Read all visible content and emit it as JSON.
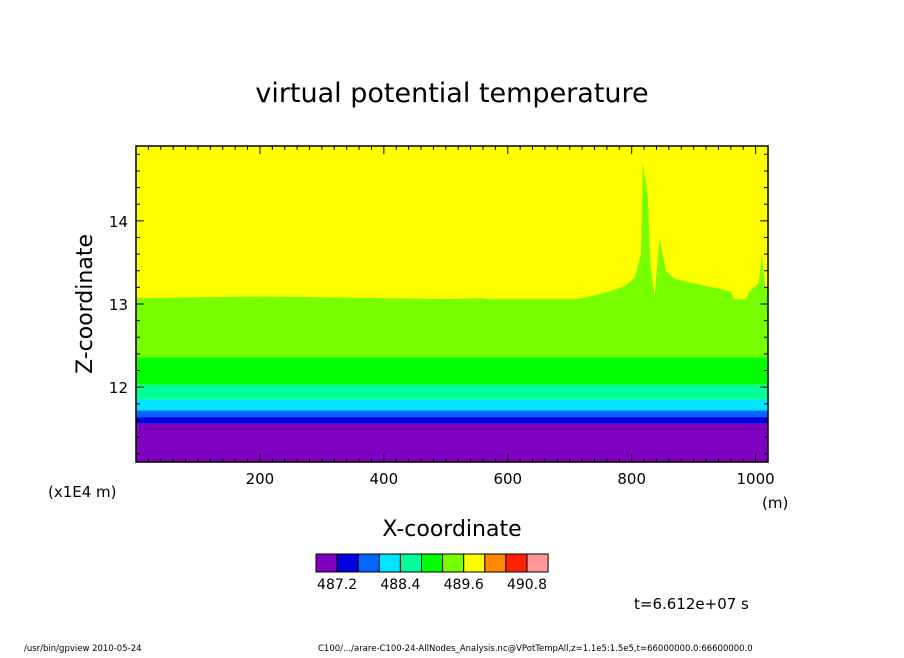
{
  "chart_data": {
    "type": "heatmap",
    "title": "virtual potential temperature",
    "xlabel": "X-coordinate",
    "ylabel": "Z-coordinate",
    "x_unit": "(m)",
    "y_unit": "(x1E4 m)",
    "xlim": [
      0,
      1020
    ],
    "ylim": [
      11.1,
      14.9
    ],
    "x_ticks": [
      "200",
      "400",
      "600",
      "800",
      "1000"
    ],
    "x_tick_values": [
      200,
      400,
      600,
      800,
      1000
    ],
    "y_ticks": [
      "12",
      "13",
      "14"
    ],
    "y_tick_values": [
      12,
      13,
      14
    ],
    "levels": [
      487.2,
      487.6,
      488.0,
      488.4,
      488.8,
      489.2,
      489.6,
      490.0,
      490.4,
      490.8
    ],
    "colorbar_labels": [
      "487.2",
      "488.4",
      "489.6",
      "490.8"
    ],
    "colorbar_colors": [
      "#7f00bf",
      "#0000e0",
      "#0066ff",
      "#00e5ff",
      "#00ff99",
      "#00ff00",
      "#77ff00",
      "#ffff00",
      "#ff8800",
      "#ff2200",
      "#ff9999"
    ],
    "bands": [
      {
        "name": "below 487.2",
        "z_from": 11.1,
        "z_to": 11.56,
        "color": "#7f00bf"
      },
      {
        "name": "487.2-487.6",
        "z_from": 11.56,
        "z_to": 11.64,
        "color": "#0000e0"
      },
      {
        "name": "487.6-488.0",
        "z_from": 11.64,
        "z_to": 11.72,
        "color": "#0066ff"
      },
      {
        "name": "488.0-488.4",
        "z_from": 11.72,
        "z_to": 11.85,
        "color": "#00e5ff"
      },
      {
        "name": "488.4-488.8",
        "z_from": 11.85,
        "z_to": 12.03,
        "color": "#00ff99"
      },
      {
        "name": "488.8-489.2",
        "z_from": 12.03,
        "z_to": 12.36,
        "color": "#00ff00"
      },
      {
        "name": "489.2-489.6",
        "z_from": 12.36,
        "z_to": 13.06,
        "color": "#77ff00"
      },
      {
        "name": "489.6-490.0",
        "z_from": 13.06,
        "z_to": 14.9,
        "color": "#ffff00"
      }
    ],
    "upper_boundary": [
      [
        0,
        13.07
      ],
      [
        100,
        13.08
      ],
      [
        200,
        13.09
      ],
      [
        300,
        13.08
      ],
      [
        400,
        13.07
      ],
      [
        500,
        13.06
      ],
      [
        560,
        13.07
      ],
      [
        620,
        13.0
      ],
      [
        660,
        13.02
      ],
      [
        720,
        13.07
      ],
      [
        760,
        13.14
      ],
      [
        790,
        13.22
      ],
      [
        805,
        13.32
      ],
      [
        815,
        13.6
      ],
      [
        818,
        14.7
      ],
      [
        826,
        14.3
      ],
      [
        830,
        13.5
      ],
      [
        837,
        13.1
      ],
      [
        845,
        13.8
      ],
      [
        855,
        13.4
      ],
      [
        870,
        13.3
      ],
      [
        900,
        13.25
      ],
      [
        930,
        13.2
      ],
      [
        960,
        13.15
      ],
      [
        975,
        12.9
      ],
      [
        990,
        13.15
      ],
      [
        1005,
        13.25
      ],
      [
        1010,
        13.6
      ],
      [
        1015,
        13.2
      ],
      [
        1020,
        13.2
      ]
    ],
    "time_label": "t=6.612e+07 s"
  },
  "footer": {
    "program": "/usr/bin/gpview   2010-05-24",
    "source": "C100/.../arare-C100-24-AllNodes_Analysis.nc@VPotTempAll,z=1.1e5:1.5e5,t=66000000.0:66600000.0"
  }
}
